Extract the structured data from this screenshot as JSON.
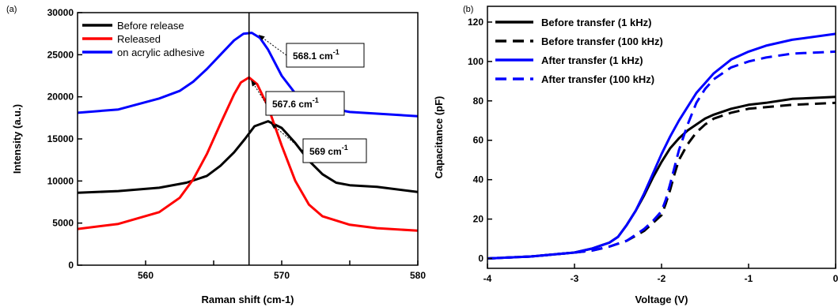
{
  "chart_data": [
    {
      "type": "line",
      "panel_label": "(a)",
      "xlabel": "Raman shift (cm-1)",
      "ylabel": "Intensity (a.u.)",
      "xlim": [
        555,
        580
      ],
      "ylim": [
        0,
        30000
      ],
      "xticks": [
        560,
        565,
        570,
        575,
        580
      ],
      "xtick_labels": [
        "560",
        "",
        "570",
        "",
        "580"
      ],
      "yticks": [
        0,
        5000,
        10000,
        15000,
        20000,
        25000,
        30000
      ],
      "ytick_labels": [
        "0",
        "5000",
        "10000",
        "15000",
        "20000",
        "25000",
        "30000"
      ],
      "grid": false,
      "legend_position": "top-left",
      "vline_x": 567.6,
      "series": [
        {
          "name": "Before release",
          "color": "#000000",
          "x": [
            555,
            558,
            561,
            563,
            564.5,
            565.5,
            566.5,
            567.3,
            568,
            569,
            570,
            571,
            572,
            573,
            574,
            575,
            577,
            580
          ],
          "y": [
            8600,
            8800,
            9200,
            9800,
            10600,
            11800,
            13400,
            15000,
            16500,
            17100,
            16300,
            14500,
            12400,
            10800,
            9800,
            9500,
            9300,
            8700
          ]
        },
        {
          "name": "Released",
          "color": "#ff0000",
          "x": [
            555,
            558,
            561,
            562.5,
            563.5,
            564.5,
            565.5,
            566.5,
            567,
            567.6,
            568.2,
            569,
            570,
            571,
            572,
            573,
            575,
            577,
            580
          ],
          "y": [
            4300,
            4900,
            6300,
            8000,
            10200,
            13200,
            16800,
            20300,
            21700,
            22300,
            21500,
            18800,
            14200,
            10000,
            7200,
            5800,
            4800,
            4400,
            4100
          ]
        },
        {
          "name": "on acrylic adhesive",
          "color": "#0000ff",
          "x": [
            555,
            558,
            561,
            562.5,
            563.5,
            564.5,
            565.5,
            566.5,
            567.2,
            567.8,
            568.4,
            569,
            570,
            571,
            572,
            573,
            575,
            577,
            580
          ],
          "y": [
            18100,
            18500,
            19800,
            20700,
            21800,
            23300,
            25000,
            26700,
            27500,
            27600,
            27000,
            25600,
            22500,
            20400,
            19300,
            18800,
            18200,
            18000,
            17700
          ]
        }
      ],
      "annotations": [
        {
          "label": "568.1 cm",
          "sup": "-1",
          "series": "on acrylic adhesive",
          "x": 568.1,
          "y": 27600
        },
        {
          "label": "567.6 cm",
          "sup": "-1",
          "series": "Released",
          "x": 567.6,
          "y": 22300
        },
        {
          "label": "569 cm",
          "sup": "-1",
          "series": "Before release",
          "x": 569,
          "y": 17100
        }
      ]
    },
    {
      "type": "line",
      "panel_label": "(b)",
      "xlabel": "Voltage (V)",
      "ylabel": "Capacitance (pF)",
      "xlim": [
        -4,
        0
      ],
      "ylim": [
        -5,
        128
      ],
      "xticks": [
        -4,
        -3,
        -2,
        -1,
        0
      ],
      "xtick_labels": [
        "-4",
        "-3",
        "-2",
        "-1",
        "0"
      ],
      "yticks": [
        0,
        20,
        40,
        60,
        80,
        100,
        120
      ],
      "ytick_labels": [
        "0",
        "20",
        "40",
        "60",
        "80",
        "100",
        "120"
      ],
      "grid": false,
      "legend_position": "top-left",
      "series": [
        {
          "name": "Before transfer (1 kHz)",
          "color": "#000000",
          "dash": "solid",
          "x": [
            -4,
            -3.5,
            -3,
            -2.8,
            -2.6,
            -2.5,
            -2.4,
            -2.3,
            -2.2,
            -2.1,
            -2.0,
            -1.9,
            -1.8,
            -1.7,
            -1.6,
            -1.5,
            -1.4,
            -1.2,
            -1.0,
            -0.8,
            -0.5,
            0
          ],
          "y": [
            0,
            1,
            3,
            5,
            8,
            11,
            17,
            24,
            32,
            41,
            49,
            56,
            61,
            65,
            68,
            71,
            73,
            76,
            78,
            79,
            81,
            82
          ]
        },
        {
          "name": "Before transfer (100 kHz)",
          "color": "#000000",
          "dash": "dashed",
          "x": [
            -4,
            -3.5,
            -3,
            -2.8,
            -2.6,
            -2.4,
            -2.2,
            -2.1,
            -2.0,
            -1.95,
            -1.9,
            -1.85,
            -1.8,
            -1.7,
            -1.6,
            -1.5,
            -1.4,
            -1.2,
            -1.0,
            -0.5,
            0
          ],
          "y": [
            0,
            1,
            3,
            4,
            6,
            9,
            14,
            18,
            22,
            28,
            35,
            43,
            50,
            58,
            64,
            68,
            71,
            74,
            76,
            78,
            79
          ]
        },
        {
          "name": "After transfer (1 kHz)",
          "color": "#0000ff",
          "dash": "solid",
          "x": [
            -4,
            -3.5,
            -3,
            -2.8,
            -2.6,
            -2.5,
            -2.4,
            -2.3,
            -2.2,
            -2.1,
            -2.0,
            -1.9,
            -1.8,
            -1.7,
            -1.6,
            -1.5,
            -1.4,
            -1.2,
            -1.0,
            -0.8,
            -0.5,
            0
          ],
          "y": [
            0,
            1,
            3,
            5,
            8,
            11,
            17,
            24,
            33,
            43,
            53,
            62,
            70,
            77,
            84,
            89,
            94,
            101,
            105,
            108,
            111,
            114
          ]
        },
        {
          "name": "After transfer (100 kHz)",
          "color": "#0000ff",
          "dash": "dashed",
          "x": [
            -4,
            -3.5,
            -3,
            -2.8,
            -2.6,
            -2.4,
            -2.2,
            -2.1,
            -2.0,
            -1.95,
            -1.9,
            -1.8,
            -1.7,
            -1.6,
            -1.5,
            -1.4,
            -1.2,
            -1.0,
            -0.8,
            -0.5,
            0
          ],
          "y": [
            0,
            1,
            3,
            4,
            6,
            9,
            15,
            19,
            24,
            30,
            38,
            55,
            68,
            79,
            86,
            91,
            97,
            100,
            102,
            104,
            105
          ]
        }
      ]
    }
  ]
}
